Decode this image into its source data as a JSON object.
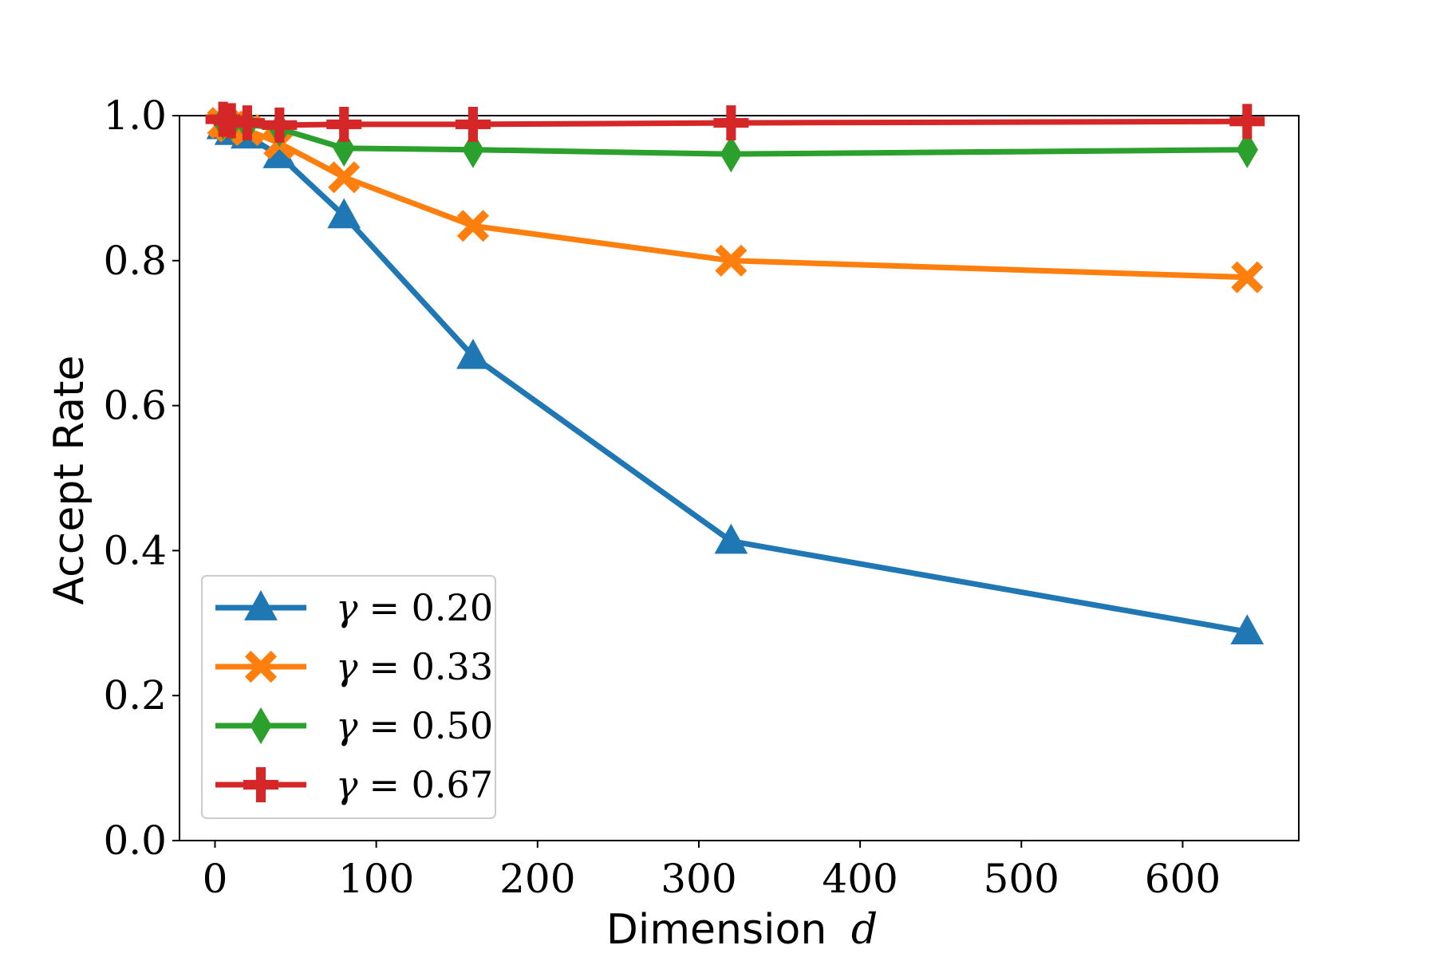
{
  "chart_data": {
    "type": "line",
    "title": "",
    "xlabel": "Dimension",
    "xlabel_var": "d",
    "ylabel": "Accept Rate",
    "xlim": [
      -22,
      672
    ],
    "ylim": [
      0.0,
      1.0
    ],
    "xticks": [
      "0",
      "100",
      "200",
      "300",
      "400",
      "500",
      "600"
    ],
    "yticks": [
      "0.0",
      "0.2",
      "0.4",
      "0.6",
      "0.8",
      "1.0"
    ],
    "grid": false,
    "legend_position": "lower-left",
    "x": [
      5,
      10,
      20,
      40,
      80,
      160,
      320,
      640
    ],
    "series": [
      {
        "name": "γ = 0.20",
        "gamma_symbol": "γ",
        "gamma_value": "= 0.20",
        "color": "#1f77b4",
        "marker": "triangle-up",
        "values": [
          0.985,
          0.977,
          0.972,
          0.945,
          0.862,
          0.668,
          0.413,
          0.288
        ]
      },
      {
        "name": "γ = 0.33",
        "gamma_symbol": "γ",
        "gamma_value": "= 0.33",
        "color": "#ff7f0e",
        "marker": "x-filled",
        "values": [
          0.99,
          0.985,
          0.98,
          0.962,
          0.915,
          0.848,
          0.8,
          0.777
        ]
      },
      {
        "name": "γ = 0.50",
        "gamma_symbol": "γ",
        "gamma_value": "= 0.50",
        "color": "#2ca02c",
        "marker": "thin-diamond",
        "values": [
          0.992,
          0.99,
          0.988,
          0.982,
          0.955,
          0.953,
          0.947,
          0.953
        ]
      },
      {
        "name": "γ = 0.67",
        "gamma_symbol": "γ",
        "gamma_value": "= 0.67",
        "color": "#d62728",
        "marker": "plus-filled",
        "values": [
          0.995,
          0.993,
          0.99,
          0.987,
          0.988,
          0.988,
          0.99,
          0.992
        ]
      }
    ]
  }
}
